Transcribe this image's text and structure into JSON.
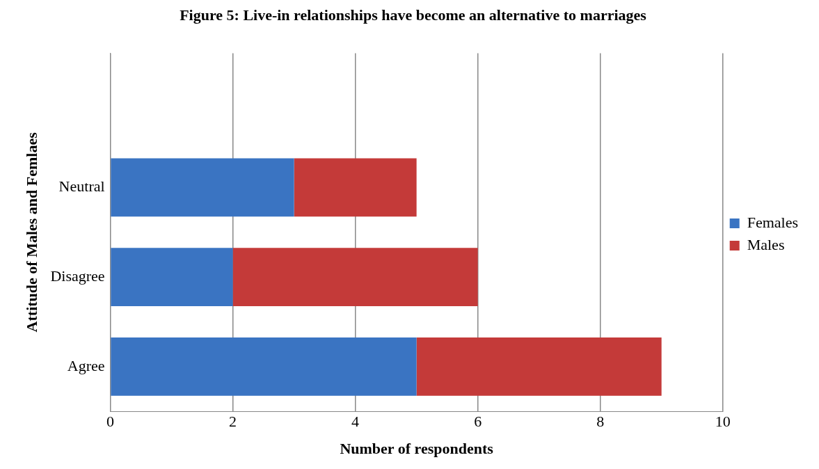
{
  "chart_data": {
    "type": "bar",
    "orientation": "horizontal",
    "stacked": true,
    "title": "Figure 5: Live-in relationships have become an alternative to marriages",
    "xlabel": "Number of respondents",
    "ylabel": "Attitude of Males and Femlaes",
    "categories": [
      null,
      "Neutral",
      "Disagree",
      "Agree"
    ],
    "series": [
      {
        "name": "Females",
        "color": "#3a74c2",
        "values": [
          null,
          3,
          2,
          5
        ]
      },
      {
        "name": "Males",
        "color": "#c43a39",
        "values": [
          null,
          2,
          4,
          4
        ]
      }
    ],
    "xlim": [
      0,
      10
    ],
    "xticks": [
      0,
      2,
      4,
      6,
      8,
      10
    ],
    "grid": "x",
    "legend": "right"
  }
}
